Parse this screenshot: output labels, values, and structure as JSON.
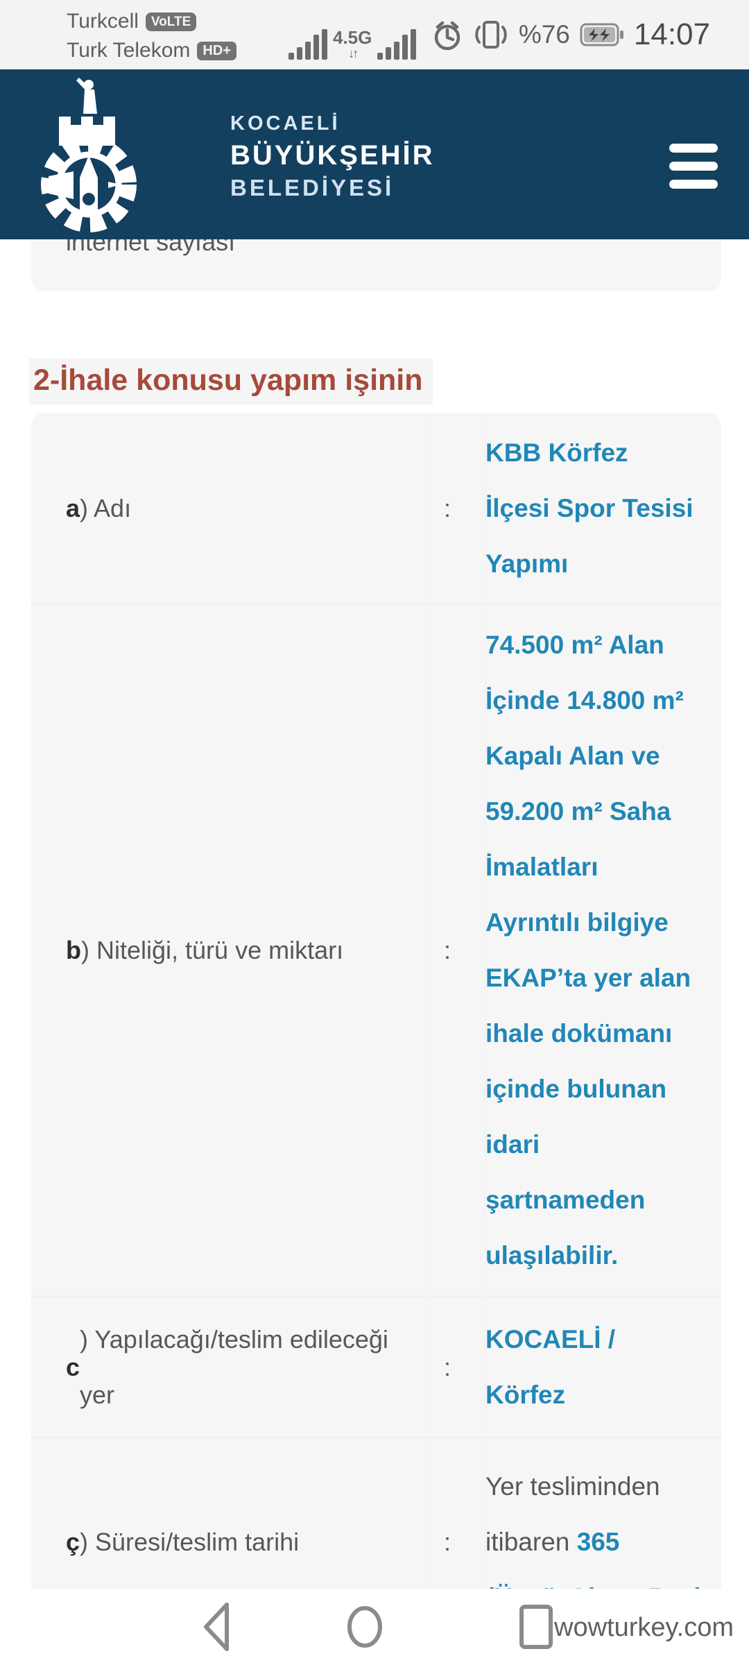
{
  "colors": {
    "navy": "#14405f",
    "link": "#2187b6",
    "red": "#a64a3a",
    "card": "#f6f6f7",
    "label": "#57575a",
    "status_text": "#5e5e60",
    "icon_gray": "#8b8b8b"
  },
  "status_bar": {
    "carrier1": "Turkcell",
    "carrier1_badge": "VoLTE",
    "carrier2": "Turk Telekom",
    "carrier2_badge": "HD+",
    "network_type": "4.5G",
    "data_arrows": "↓↑",
    "battery_percent": "%76",
    "time": "14:07",
    "icons": [
      "signal-bars-sim1",
      "signal-bars-sim2",
      "alarm",
      "vibrate",
      "battery-charging"
    ]
  },
  "header": {
    "logo_line1": "KOCAELİ",
    "logo_line2": "BÜYÜKŞEHİR",
    "logo_line3": "BELEDİYESİ",
    "icons": [
      "municipality-gear-logo",
      "hamburger-menu"
    ]
  },
  "page": {
    "clipped_card_text": "internet sayfası",
    "section_heading": "2-İhale konusu yapım işinin",
    "table": {
      "rows": [
        {
          "prefix": "a",
          "label": ") Adı",
          "separator": ":",
          "value": [
            {
              "style": "link",
              "text": "KBB Körfez İlçesi Spor Tesisi Yapımı"
            }
          ]
        },
        {
          "prefix": "b",
          "label": ") Niteliği, türü ve miktarı",
          "separator": ":",
          "value": [
            {
              "style": "link",
              "text": "74.500 m² Alan İçinde 14.800 m² Kapalı Alan ve 59.200 m² Saha İmalatları Ayrıntılı bilgiye EKAP’ta yer alan ihale dokümanı içinde bulunan idari şartnameden ulaşılabilir."
            }
          ]
        },
        {
          "prefix": "c",
          "label": ") Yapılacağı/teslim edileceği yer",
          "separator": ":",
          "value": [
            {
              "style": "link",
              "text": "KOCAELİ / Körfez"
            }
          ]
        },
        {
          "prefix": "ç",
          "label": ") Süresi/teslim tarihi",
          "separator": ":",
          "value": [
            {
              "style": "plain",
              "text": "Yer tesliminden itibaren "
            },
            {
              "style": "link",
              "text": "365"
            },
            {
              "style": "plain",
              "text": " "
            },
            {
              "style": "link",
              "text": "(ÜçyüzAltmışBeş)"
            }
          ]
        }
      ]
    }
  },
  "nav_bar": {
    "watermark": "wowturkey.com",
    "icons": [
      "back",
      "home",
      "recents"
    ]
  }
}
